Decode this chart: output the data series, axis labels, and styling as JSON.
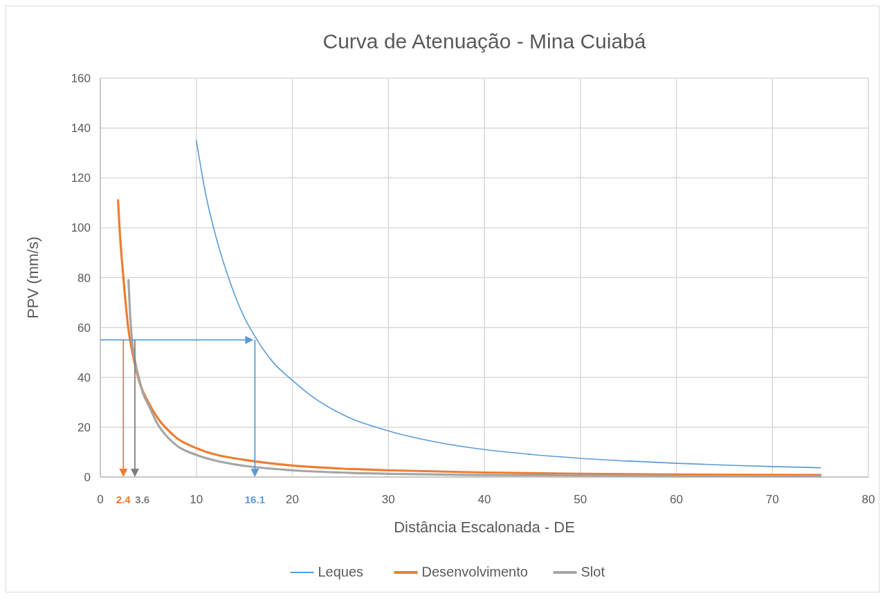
{
  "chart_data": {
    "type": "line",
    "title": "Curva de Atenuação - Mina Cuiabá",
    "xlabel": "Distância Escalonada - DE",
    "ylabel": "PPV (mm/s)",
    "xlim": [
      0,
      80
    ],
    "xticks": [
      0,
      10,
      20,
      30,
      40,
      50,
      60,
      70,
      80
    ],
    "ylim": [
      0,
      160
    ],
    "yticks": [
      0,
      20,
      40,
      60,
      80,
      100,
      120,
      140,
      160
    ],
    "grid": true,
    "legend": "bottom",
    "marker": "none",
    "line_style": "solid",
    "series": [
      {
        "name": "Leques",
        "color": "#5b9bd5",
        "x": [
          10,
          11,
          12,
          13,
          14,
          15,
          16,
          18,
          20,
          22,
          25,
          30,
          35,
          40,
          45,
          50,
          55,
          60,
          65,
          70,
          75
        ],
        "values": [
          135,
          113,
          97,
          84,
          73,
          64,
          57,
          46,
          38.8,
          32.5,
          25.5,
          18.5,
          14,
          11,
          9,
          7.5,
          6.4,
          5.5,
          4.8,
          4.2,
          3.7
        ]
      },
      {
        "name": "Desenvolvimento",
        "color": "#ed7d31",
        "x": [
          1.85,
          2,
          2.4,
          2.9,
          3.5,
          4,
          5,
          6,
          7,
          8,
          10,
          12,
          15,
          20,
          25,
          30,
          40,
          50,
          60,
          75
        ],
        "values": [
          111,
          100,
          80,
          60,
          47,
          39,
          30,
          23.5,
          19,
          15.5,
          11.6,
          9,
          6.9,
          4.6,
          3.4,
          2.7,
          1.8,
          1.3,
          1,
          0.8
        ]
      },
      {
        "name": "Slot",
        "color": "#a5a5a5",
        "x": [
          2.93,
          3.1,
          3.3,
          3.6,
          4,
          4.5,
          5,
          6,
          7,
          8,
          10,
          12,
          15,
          20,
          25,
          30,
          40,
          50,
          60,
          75
        ],
        "values": [
          79,
          65,
          55,
          47,
          40,
          33,
          29,
          21,
          16,
          12.5,
          8.9,
          6.6,
          4.5,
          2.7,
          1.8,
          1.3,
          0.8,
          0.6,
          0.4,
          0.3
        ]
      }
    ],
    "ref_lines": [
      {
        "axis": "y",
        "value": 55,
        "color": "#5b9bd5"
      },
      {
        "axis": "x",
        "value": 16.1,
        "label": "16.1",
        "color": "#5b9bd5"
      },
      {
        "axis": "x",
        "value": 2.4,
        "label": "2.4",
        "color": "#ed7d31"
      },
      {
        "axis": "x",
        "value": 3.6,
        "label": "3.6",
        "color": "#7f7f7f"
      }
    ]
  }
}
